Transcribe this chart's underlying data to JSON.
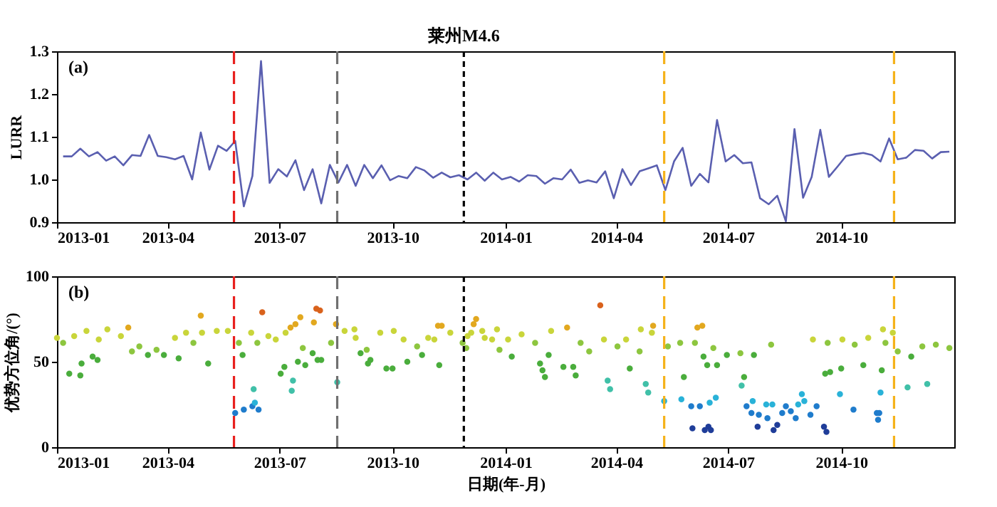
{
  "chart_data": [
    {
      "type": "line",
      "ylabel": "LURR",
      "annotations": [
        "(a)"
      ],
      "xlim": [
        "2013-01",
        "2015-01"
      ],
      "xticks": [
        "2013-01",
        "2013-04",
        "2013-07",
        "2013-10",
        "2014-01",
        "2014-04",
        "2014-07",
        "2014-10"
      ],
      "ylim": [
        0.9,
        1.3
      ],
      "yticks": [
        0.9,
        {
          "value": 1.0,
          "label": "1.0"
        },
        1.1,
        1.2,
        1.3
      ],
      "marker": "none",
      "line_style": "solid",
      "ref_lines": [
        {
          "axis": "x",
          "value": "2013-05-25",
          "color": "#e8201e",
          "line_style": "dashed"
        },
        {
          "axis": "x",
          "value": "2013-08-17",
          "color": "#707070",
          "line_style": "dashed"
        },
        {
          "axis": "x",
          "value": "2013-11-28",
          "color": "#000000",
          "line_style": "dotted",
          "label": "莱州M4.6"
        },
        {
          "axis": "x",
          "value": "2014-05-10",
          "color": "#f5b21a",
          "line_style": "dashed"
        },
        {
          "axis": "x",
          "value": "2014-11-13",
          "color": "#f5b21a",
          "line_style": "dashed"
        }
      ],
      "series": [
        {
          "color": "#5a5fb0",
          "x": [
            "2013-01-06",
            "2013-01-13",
            "2013-01-20",
            "2013-01-27",
            "2013-02-03",
            "2013-02-10",
            "2013-02-17",
            "2013-02-24",
            "2013-03-03",
            "2013-03-10",
            "2013-03-17",
            "2013-03-24",
            "2013-03-31",
            "2013-04-07",
            "2013-04-14",
            "2013-04-21",
            "2013-04-28",
            "2013-05-05",
            "2013-05-12",
            "2013-05-19",
            "2013-05-26",
            "2013-06-02",
            "2013-06-09",
            "2013-06-16",
            "2013-06-23",
            "2013-06-30",
            "2013-07-07",
            "2013-07-14",
            "2013-07-21",
            "2013-07-28",
            "2013-08-04",
            "2013-08-11",
            "2013-08-18",
            "2013-08-25",
            "2013-09-01",
            "2013-09-08",
            "2013-09-15",
            "2013-09-22",
            "2013-09-29",
            "2013-10-06",
            "2013-10-13",
            "2013-10-20",
            "2013-10-27",
            "2013-11-03",
            "2013-11-10",
            "2013-11-17",
            "2013-11-24",
            "2013-12-01",
            "2013-12-08",
            "2013-12-15",
            "2013-12-22",
            "2013-12-29",
            "2014-01-05",
            "2014-01-12",
            "2014-01-19",
            "2014-01-26",
            "2014-02-02",
            "2014-02-09",
            "2014-02-16",
            "2014-02-23",
            "2014-03-02",
            "2014-03-09",
            "2014-03-16",
            "2014-03-23",
            "2014-03-30",
            "2014-04-06",
            "2014-04-13",
            "2014-04-20",
            "2014-04-27",
            "2014-05-04",
            "2014-05-11",
            "2014-05-18",
            "2014-05-25",
            "2014-06-01",
            "2014-06-08",
            "2014-06-15",
            "2014-06-22",
            "2014-06-29",
            "2014-07-06",
            "2014-07-13",
            "2014-07-20",
            "2014-07-27",
            "2014-08-03",
            "2014-08-10",
            "2014-08-17",
            "2014-08-24",
            "2014-08-31",
            "2014-09-07",
            "2014-09-14",
            "2014-09-21",
            "2014-09-28",
            "2014-10-05",
            "2014-10-12",
            "2014-10-19",
            "2014-10-26",
            "2014-11-02",
            "2014-11-09",
            "2014-11-16",
            "2014-11-23",
            "2014-11-30",
            "2014-12-07",
            "2014-12-14",
            "2014-12-21",
            "2014-12-28"
          ],
          "values": [
            1.054,
            1.054,
            1.072,
            1.054,
            1.064,
            1.044,
            1.054,
            1.033,
            1.057,
            1.055,
            1.104,
            1.055,
            1.052,
            1.047,
            1.055,
            1.0,
            1.11,
            1.023,
            1.079,
            1.067,
            1.09,
            0.937,
            1.008,
            1.277,
            0.992,
            1.024,
            1.007,
            1.045,
            0.975,
            1.024,
            0.944,
            1.034,
            0.993,
            1.034,
            0.985,
            1.034,
            1.003,
            1.033,
            0.998,
            1.008,
            1.003,
            1.029,
            1.021,
            1.004,
            1.016,
            1.005,
            1.01,
            1.0,
            1.016,
            0.997,
            1.016,
            1.0,
            1.006,
            0.995,
            1.01,
            1.008,
            0.99,
            1.003,
            1.0,
            1.023,
            0.992,
            0.998,
            0.993,
            1.019,
            0.956,
            1.024,
            0.987,
            1.019,
            1.026,
            1.033,
            0.975,
            1.042,
            1.074,
            0.985,
            1.013,
            0.993,
            1.139,
            1.042,
            1.057,
            1.038,
            1.04,
            0.956,
            0.942,
            0.962,
            0.902,
            1.118,
            0.957,
            1.006,
            1.116,
            1.006,
            1.03,
            1.055,
            1.059,
            1.062,
            1.057,
            1.042,
            1.096,
            1.047,
            1.051,
            1.069,
            1.067,
            1.049,
            1.064,
            1.065
          ]
        }
      ]
    },
    {
      "type": "scatter",
      "xlabel": "日期(年-月)",
      "ylabel": "优势方位角/(°)",
      "annotations": [
        "(b)"
      ],
      "xlim": [
        "2013-01",
        "2015-01"
      ],
      "xticks": [
        "2013-01",
        "2013-04",
        "2013-07",
        "2013-10",
        "2014-01",
        "2014-04",
        "2014-07",
        "2014-10"
      ],
      "ylim": [
        0,
        100
      ],
      "yticks": [
        0,
        50,
        100
      ],
      "marker": "circle",
      "ref_lines": [
        {
          "axis": "x",
          "value": "2013-05-25",
          "color": "#e8201e",
          "line_style": "dashed"
        },
        {
          "axis": "x",
          "value": "2013-08-17",
          "color": "#707070",
          "line_style": "dashed"
        },
        {
          "axis": "x",
          "value": "2013-11-28",
          "color": "#000000",
          "line_style": "dotted"
        },
        {
          "axis": "x",
          "value": "2014-05-10",
          "color": "#f5b21a",
          "line_style": "dashed"
        },
        {
          "axis": "x",
          "value": "2014-11-13",
          "color": "#f5b21a",
          "line_style": "dashed"
        }
      ],
      "series": [
        {
          "color": "#1f3d99",
          "x": [
            "2014-06-02",
            "2014-06-12",
            "2014-06-15",
            "2014-06-17",
            "2014-07-25",
            "2014-08-07",
            "2014-08-10",
            "2014-09-17",
            "2014-09-19"
          ],
          "values": [
            11,
            10,
            12,
            10,
            12,
            10,
            13,
            12,
            9
          ]
        },
        {
          "color": "#1f7ccc",
          "x": [
            "2013-05-26",
            "2013-06-02",
            "2013-06-09",
            "2013-06-14",
            "2014-06-01",
            "2014-06-08",
            "2014-07-16",
            "2014-07-20",
            "2014-07-26",
            "2014-08-02",
            "2014-08-14",
            "2014-08-17",
            "2014-08-21",
            "2014-08-25",
            "2014-09-06",
            "2014-09-11",
            "2014-10-11",
            "2014-10-30",
            "2014-10-31",
            "2014-11-01"
          ],
          "values": [
            20,
            22,
            24,
            22,
            24,
            24,
            24,
            20,
            19,
            17,
            20,
            24,
            21,
            17,
            19,
            24,
            22,
            20,
            16,
            20
          ]
        },
        {
          "color": "#29b2d8",
          "x": [
            "2013-06-11",
            "2014-05-10",
            "2014-05-24",
            "2014-06-16",
            "2014-06-21",
            "2014-07-21",
            "2014-08-01",
            "2014-08-06",
            "2014-08-27",
            "2014-08-30",
            "2014-09-01",
            "2014-09-30",
            "2014-11-02"
          ],
          "values": [
            26,
            27,
            28,
            26,
            29,
            27,
            25,
            25,
            25,
            31,
            27,
            31,
            32
          ]
        },
        {
          "color": "#40c0a8",
          "x": [
            "2013-06-10",
            "2013-07-11",
            "2013-07-12",
            "2013-08-17",
            "2014-03-25",
            "2014-03-27",
            "2014-04-25",
            "2014-04-27",
            "2014-07-12",
            "2014-11-24",
            "2014-12-10"
          ],
          "values": [
            34,
            33,
            39,
            38,
            39,
            34,
            37,
            32,
            36,
            35,
            37
          ]
        },
        {
          "color": "#4aad3c",
          "x": [
            "2013-01-11",
            "2013-01-20",
            "2013-01-21",
            "2013-01-30",
            "2013-02-03",
            "2013-03-16",
            "2013-03-29",
            "2013-04-10",
            "2013-05-04",
            "2013-06-01",
            "2013-07-02",
            "2013-07-05",
            "2013-07-16",
            "2013-07-22",
            "2013-07-28",
            "2013-08-01",
            "2013-08-04",
            "2013-09-05",
            "2013-09-11",
            "2013-09-13",
            "2013-09-26",
            "2013-10-01",
            "2013-10-13",
            "2013-10-25",
            "2013-11-08",
            "2014-01-06",
            "2014-01-29",
            "2014-01-31",
            "2014-02-02",
            "2014-02-05",
            "2014-02-17",
            "2014-02-25",
            "2014-02-27",
            "2014-04-12",
            "2014-05-26",
            "2014-06-11",
            "2014-06-14",
            "2014-06-22",
            "2014-06-30",
            "2014-07-14",
            "2014-07-22",
            "2014-09-18",
            "2014-09-22",
            "2014-10-01",
            "2014-10-19",
            "2014-11-03",
            "2014-11-27"
          ],
          "values": [
            43,
            42,
            49,
            53,
            51,
            54,
            54,
            52,
            49,
            54,
            43,
            47,
            50,
            48,
            55,
            51,
            51,
            55,
            49,
            51,
            46,
            46,
            50,
            54,
            48,
            53,
            49,
            45,
            41,
            54,
            47,
            47,
            42,
            46,
            41,
            53,
            48,
            48,
            54,
            41,
            54,
            43,
            44,
            46,
            48,
            45,
            53
          ]
        },
        {
          "color": "#8dc63f",
          "x": [
            "2013-01-06",
            "2013-03-03",
            "2013-03-09",
            "2013-03-23",
            "2013-04-22",
            "2013-05-29",
            "2013-06-13",
            "2013-07-20",
            "2013-08-12",
            "2013-09-10",
            "2013-10-21",
            "2013-11-27",
            "2013-11-30",
            "2013-12-27",
            "2014-01-25",
            "2014-03-03",
            "2014-03-10",
            "2014-04-02",
            "2014-04-20",
            "2014-05-13",
            "2014-05-23",
            "2014-06-04",
            "2014-06-19",
            "2014-07-11",
            "2014-08-05",
            "2014-09-20",
            "2014-10-12",
            "2014-11-06",
            "2014-11-16",
            "2014-12-06",
            "2014-12-17",
            "2014-12-28"
          ],
          "values": [
            61,
            56,
            59,
            57,
            61,
            61,
            61,
            58,
            61,
            57,
            59,
            61,
            58,
            57,
            61,
            61,
            56,
            59,
            56,
            59,
            61,
            61,
            58,
            55,
            60,
            61,
            60,
            61,
            56,
            59,
            60,
            58
          ]
        },
        {
          "color": "#c9d53a",
          "x": [
            "2013-01-01",
            "2013-01-15",
            "2013-01-25",
            "2013-02-04",
            "2013-02-11",
            "2013-02-22",
            "2013-04-07",
            "2013-04-16",
            "2013-04-29",
            "2013-05-11",
            "2013-05-20",
            "2013-06-08",
            "2013-06-22",
            "2013-06-28",
            "2013-07-06",
            "2013-08-23",
            "2013-08-31",
            "2013-09-01",
            "2013-09-21",
            "2013-10-02",
            "2013-10-10",
            "2013-10-30",
            "2013-11-04",
            "2013-11-17",
            "2013-12-01",
            "2013-12-04",
            "2013-12-13",
            "2013-12-15",
            "2013-12-21",
            "2013-12-25",
            "2014-01-03",
            "2014-01-14",
            "2014-02-07",
            "2014-03-22",
            "2014-04-09",
            "2014-04-21",
            "2014-04-30",
            "2014-09-08",
            "2014-10-02",
            "2014-10-23",
            "2014-11-04",
            "2014-11-12"
          ],
          "values": [
            64,
            65,
            68,
            63,
            69,
            65,
            64,
            67,
            67,
            68,
            68,
            67,
            65,
            63,
            67,
            68,
            69,
            64,
            67,
            68,
            63,
            64,
            63,
            67,
            65,
            67,
            68,
            64,
            63,
            69,
            63,
            66,
            68,
            63,
            63,
            69,
            67,
            63,
            63,
            64,
            69,
            67
          ]
        },
        {
          "color": "#e2a81f",
          "x": [
            "2013-02-28",
            "2013-04-28",
            "2013-07-10",
            "2013-07-14",
            "2013-07-18",
            "2013-07-29",
            "2013-08-16",
            "2013-11-07",
            "2013-11-10",
            "2013-12-06",
            "2013-12-08",
            "2014-02-20",
            "2014-05-01",
            "2014-06-06",
            "2014-06-10"
          ],
          "values": [
            70,
            77,
            70,
            72,
            76,
            73,
            72,
            71,
            71,
            72,
            75,
            70,
            71,
            70,
            71
          ]
        },
        {
          "color": "#d9621c",
          "x": [
            "2013-06-17",
            "2013-07-31",
            "2013-08-03",
            "2014-03-19"
          ],
          "values": [
            79,
            81,
            80,
            83
          ]
        }
      ]
    }
  ]
}
